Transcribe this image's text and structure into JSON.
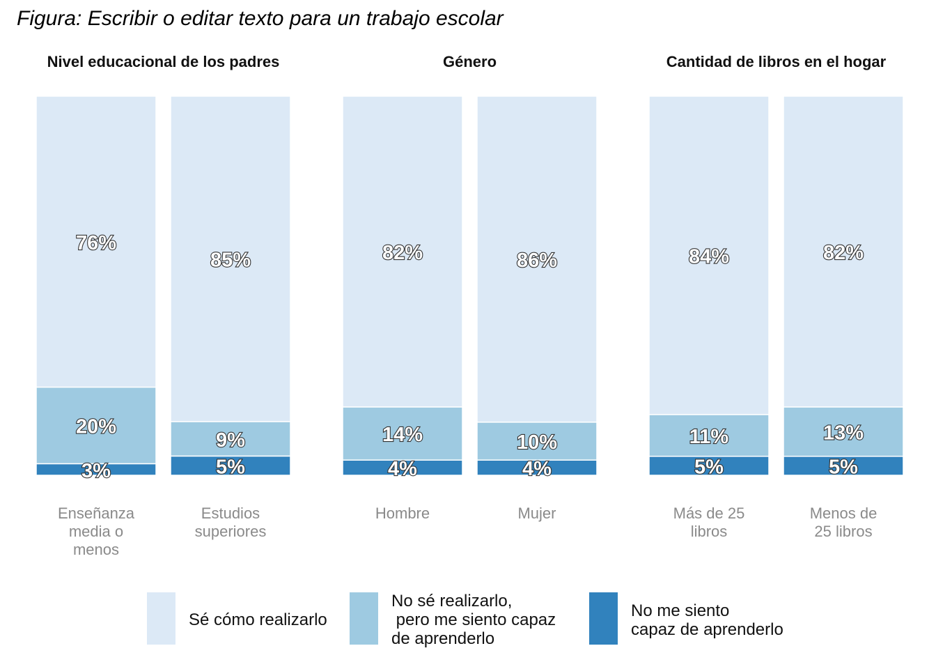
{
  "figure_title": "Figura: Escribir o editar texto para un trabajo escolar",
  "chart_data": {
    "type": "bar",
    "stacked": true,
    "normalized": true,
    "ylim": [
      0,
      100
    ],
    "grid": false,
    "legend_position": "bottom",
    "value_labels": true,
    "colors": [
      "#dce9f6",
      "#9ecae1",
      "#3182bd"
    ],
    "series_names": [
      "Sé cómo realizarlo",
      "No sé realizarlo,\n pero me siento capaz\nde aprenderlo",
      "No me siento\ncapaz de aprenderlo"
    ],
    "panels": [
      {
        "title": "Nivel educacional de los padres",
        "bars": [
          {
            "label": "Enseñanza\nmedia o\nmenos",
            "values": [
              76,
              20,
              3
            ],
            "labels": [
              "76%",
              "20%",
              "3%"
            ]
          },
          {
            "label": "Estudios\nsuperiores",
            "values": [
              85,
              9,
              5
            ],
            "labels": [
              "85%",
              "9%",
              "5%"
            ]
          }
        ]
      },
      {
        "title": "Género",
        "bars": [
          {
            "label": "Hombre",
            "values": [
              82,
              14,
              4
            ],
            "labels": [
              "82%",
              "14%",
              "4%"
            ]
          },
          {
            "label": "Mujer",
            "values": [
              86,
              10,
              4
            ],
            "labels": [
              "86%",
              "10%",
              "4%"
            ]
          }
        ]
      },
      {
        "title": "Cantidad de libros en el hogar",
        "bars": [
          {
            "label": "Más de 25\nlibros",
            "values": [
              84,
              11,
              5
            ],
            "labels": [
              "84%",
              "11%",
              "5%"
            ]
          },
          {
            "label": "Menos de\n25 libros",
            "values": [
              82,
              13,
              5
            ],
            "labels": [
              "82%",
              "13%",
              "5%"
            ]
          }
        ]
      }
    ]
  }
}
